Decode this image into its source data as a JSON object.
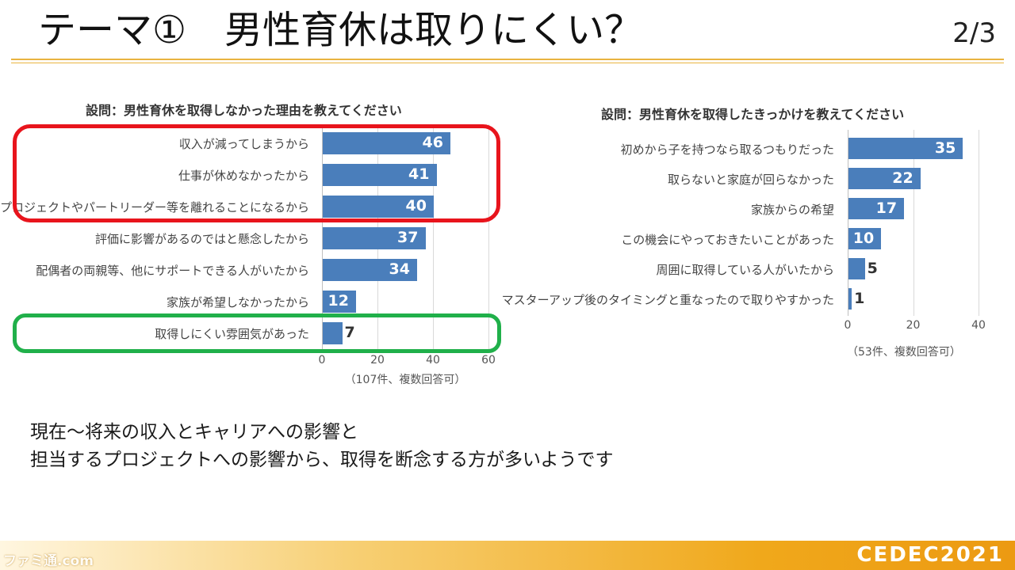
{
  "header": {
    "title": "テーマ①　男性育休は取りにくい？",
    "page": "2/3"
  },
  "left_chart": {
    "title": "設問：男性育休を取得しなかった理由を教えてください",
    "note": "（107件、複数回答可）"
  },
  "right_chart": {
    "title": "設問：男性育休を取得したきっかけを教えてください",
    "note": "（53件、複数回答可）"
  },
  "summary": {
    "line1": "現在～将来の収入とキャリアへの影響と",
    "line2": "担当するプロジェクトへの影響から、取得を断念する方が多いようです"
  },
  "footer": {
    "brand": "CEDEC2021",
    "watermark": "ファミ通.com"
  },
  "colors": {
    "bar": "#4a7ebb",
    "highlight_red": "#e8141c",
    "highlight_green": "#20b04a",
    "accent_gold": "#e9b440"
  },
  "chart_data": [
    {
      "type": "bar",
      "orientation": "horizontal",
      "title": "設問：男性育休を取得しなかった理由を教えてください",
      "categories": [
        "収入が減ってしまうから",
        "仕事が休めなかったから",
        "プロジェクトやパートリーダー等を離れることになるから",
        "評価に影響があるのではと懸念したから",
        "配偶者の両親等、他にサポートできる人がいたから",
        "家族が希望しなかったから",
        "取得しにくい雰囲気があった"
      ],
      "values": [
        46,
        41,
        40,
        37,
        34,
        12,
        7
      ],
      "xlim": [
        0,
        60
      ],
      "xticks": [
        0,
        20,
        40,
        60
      ],
      "note": "（107件、複数回答可）",
      "grid": true,
      "highlighted_groups": [
        {
          "color": "red",
          "categories": [
            0,
            1,
            2
          ]
        },
        {
          "color": "green",
          "categories": [
            6
          ]
        }
      ]
    },
    {
      "type": "bar",
      "orientation": "horizontal",
      "title": "設問：男性育休を取得したきっかけを教えてください",
      "categories": [
        "初めから子を持つなら取るつもりだった",
        "取らないと家庭が回らなかった",
        "家族からの希望",
        "この機会にやっておきたいことがあった",
        "周囲に取得している人がいたから",
        "マスターアップ後のタイミングと重なったので取りやすかった"
      ],
      "values": [
        35,
        22,
        17,
        10,
        5,
        1
      ],
      "xlim": [
        0,
        40
      ],
      "xticks": [
        0,
        20,
        40
      ],
      "note": "（53件、複数回答可）",
      "grid": true
    }
  ]
}
